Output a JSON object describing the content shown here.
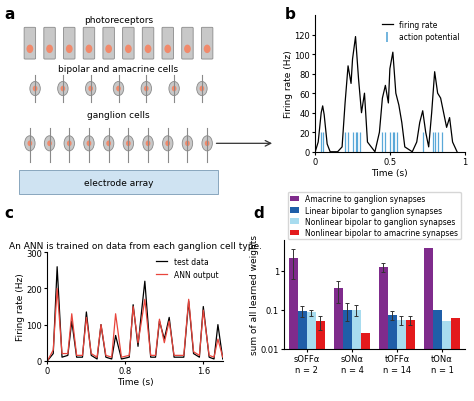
{
  "diagram": {
    "panel_label": "a",
    "labels": [
      "photoreceptors",
      "bipolar and amacrine cells",
      "ganglion cells",
      "electrode array"
    ]
  },
  "chart_data": [
    {
      "panel_label": "b",
      "type": "line",
      "x_label": "Time (s)",
      "y_label": "Firing rate (Hz)",
      "xlim": [
        0,
        1
      ],
      "xticks": [
        0,
        0.5,
        1
      ],
      "ylim": [
        0,
        140
      ],
      "yticks": [
        0,
        20,
        40,
        60,
        80,
        100,
        120
      ],
      "legend": "upper right",
      "series": [
        {
          "name": "firing rate",
          "type": "line",
          "color": "#000000",
          "x": [
            0,
            0.02,
            0.04,
            0.05,
            0.06,
            0.08,
            0.1,
            0.15,
            0.18,
            0.2,
            0.22,
            0.24,
            0.25,
            0.27,
            0.29,
            0.31,
            0.33,
            0.35,
            0.4,
            0.43,
            0.45,
            0.47,
            0.49,
            0.5,
            0.52,
            0.54,
            0.56,
            0.58,
            0.6,
            0.65,
            0.68,
            0.7,
            0.72,
            0.74,
            0.76,
            0.78,
            0.8,
            0.82,
            0.84,
            0.86,
            0.88,
            0.9,
            0.92,
            0.95
          ],
          "values": [
            0,
            10,
            40,
            47,
            38,
            8,
            0,
            0,
            5,
            50,
            88,
            70,
            95,
            118,
            75,
            40,
            60,
            10,
            0,
            20,
            55,
            68,
            50,
            85,
            102,
            60,
            48,
            30,
            5,
            0,
            10,
            30,
            42,
            20,
            5,
            40,
            82,
            60,
            55,
            40,
            25,
            35,
            10,
            0
          ]
        },
        {
          "name": "action potential",
          "type": "event",
          "color": "#5aa8d8",
          "x": [
            0.04,
            0.05,
            0.2,
            0.22,
            0.25,
            0.27,
            0.28,
            0.3,
            0.45,
            0.47,
            0.5,
            0.52,
            0.53,
            0.55,
            0.72,
            0.79,
            0.8,
            0.82,
            0.85
          ],
          "values": [
            20,
            20,
            20,
            20,
            20,
            20,
            20,
            20,
            20,
            20,
            20,
            20,
            20,
            20,
            20,
            20,
            20,
            20,
            20
          ]
        }
      ]
    },
    {
      "panel_label": "c",
      "type": "line",
      "title": "An ANN is trained on data from each ganglion cell type.",
      "x_label": "Time (s)",
      "y_label": "Firing rate (Hz)",
      "xlim": [
        0,
        1.8
      ],
      "xticks": [
        0,
        0.8,
        1.6
      ],
      "ylim": [
        0,
        300
      ],
      "yticks": [
        0,
        100,
        200,
        300
      ],
      "legend": "upper right",
      "series": [
        {
          "name": "test data",
          "type": "line",
          "color": "#000000",
          "x": [
            0,
            0.06,
            0.1,
            0.15,
            0.21,
            0.25,
            0.3,
            0.36,
            0.4,
            0.45,
            0.51,
            0.55,
            0.6,
            0.66,
            0.7,
            0.76,
            0.84,
            0.88,
            0.93,
            0.96,
            1.0,
            1.06,
            1.11,
            1.15,
            1.2,
            1.25,
            1.3,
            1.4,
            1.45,
            1.5,
            1.56,
            1.6,
            1.66,
            1.71,
            1.75,
            1.8
          ],
          "values": [
            0,
            20,
            260,
            10,
            15,
            110,
            10,
            10,
            135,
            15,
            5,
            100,
            10,
            5,
            70,
            5,
            10,
            155,
            40,
            120,
            220,
            10,
            10,
            110,
            60,
            120,
            10,
            10,
            165,
            20,
            10,
            150,
            10,
            5,
            100,
            5
          ]
        },
        {
          "name": "ANN output",
          "type": "line",
          "color": "#e8453c",
          "x": [
            0,
            0.06,
            0.1,
            0.15,
            0.21,
            0.25,
            0.3,
            0.36,
            0.4,
            0.45,
            0.51,
            0.55,
            0.6,
            0.66,
            0.7,
            0.76,
            0.84,
            0.88,
            0.93,
            0.96,
            1.0,
            1.06,
            1.11,
            1.15,
            1.2,
            1.25,
            1.3,
            1.4,
            1.45,
            1.5,
            1.56,
            1.6,
            1.66,
            1.71,
            1.75,
            1.8
          ],
          "values": [
            0,
            30,
            200,
            20,
            20,
            130,
            15,
            15,
            120,
            20,
            10,
            100,
            15,
            10,
            130,
            10,
            15,
            150,
            50,
            100,
            170,
            15,
            15,
            115,
            50,
            110,
            15,
            15,
            170,
            25,
            15,
            140,
            15,
            10,
            60,
            10
          ]
        }
      ]
    },
    {
      "panel_label": "d",
      "type": "bar",
      "y_label": "sum of all learned weights",
      "log": "y",
      "categories": [
        "sOFFα\nn = 2",
        "sONα\nn = 4",
        "tOFFα\nn = 14",
        "tONα\nn = 1"
      ],
      "ylim": [
        0.01,
        6
      ],
      "yticks": [
        0.01,
        0.1,
        1
      ],
      "legend": "upper right",
      "series": [
        {
          "name": "Amacrine to ganglion synapses",
          "color": "#7f2b8c",
          "values": [
            2.1,
            0.35,
            1.25,
            3.8
          ],
          "errors": [
            1.5,
            0.2,
            0.35,
            null
          ]
        },
        {
          "name": "Linear bipolar to ganglion synapses",
          "color": "#1f5ea8",
          "values": [
            0.095,
            0.1,
            0.075,
            0.1
          ],
          "errors": [
            0.03,
            0.05,
            0.02,
            null
          ]
        },
        {
          "name": "Nonlinear bipolar to ganglion synapses",
          "color": "#a8dcef",
          "values": [
            0.085,
            0.1,
            0.055,
            0.05
          ],
          "errors": [
            0.015,
            0.03,
            0.015,
            null
          ]
        },
        {
          "name": "Nonlinear bipolar to amacrine synapses",
          "color": "#e31a1c",
          "values": [
            0.05,
            0.025,
            0.055,
            0.06
          ],
          "errors": [
            0.02,
            null,
            0.015,
            null
          ]
        }
      ]
    }
  ]
}
